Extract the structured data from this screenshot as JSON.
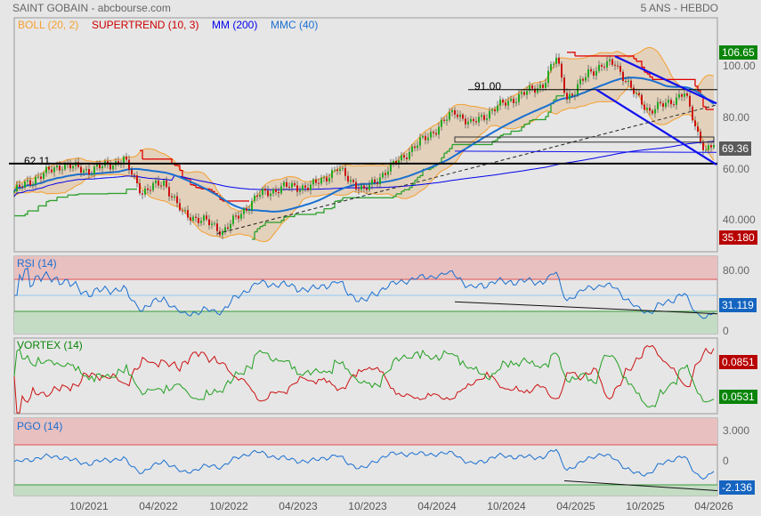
{
  "header": {
    "title": "SAINT GOBAIN - abcbourse.com",
    "period": "5 ANS - HEBDO"
  },
  "legend": [
    {
      "label": "BOLL (20, 2)",
      "color": "#f5a030"
    },
    {
      "label": "SUPERTREND (10, 3)",
      "color": "#cc0000"
    },
    {
      "label": "MM (200)",
      "color": "#0000ee"
    },
    {
      "label": "MMC (40)",
      "color": "#1a6fd0"
    }
  ],
  "price_axis": {
    "ticks": [
      "100.00",
      "80.00",
      "60.00",
      "40.000"
    ],
    "high_badge": "106.65",
    "last_badge": "69.36",
    "low_badge": "35.180"
  },
  "rsi": {
    "title": "RSI (14)",
    "ticks": [
      "80.00",
      "0"
    ],
    "badge": "31.119"
  },
  "vortex": {
    "title": "VORTEX (14)",
    "badge_minus": "0.0851",
    "badge_plus": "0.0531"
  },
  "pgo": {
    "title": "PGO (14)",
    "ticks": [
      "3.000",
      "0"
    ],
    "badge": "-2.136"
  },
  "dates": [
    "10/2021",
    "04/2022",
    "10/2022",
    "04/2023",
    "10/2023",
    "04/2024",
    "10/2024",
    "04/2025",
    "10/2025",
    "04/2026"
  ],
  "annotations": {
    "support_label": "62.11",
    "resistance_label": "91.00"
  },
  "chart_data": {
    "type": "candlestick",
    "title": "SAINT GOBAIN - 5 ANS - HEBDO",
    "x_unit": "week index",
    "ylim": [
      27,
      119
    ],
    "keypoints": [
      [
        0,
        51.3
      ],
      [
        8,
        56.5
      ],
      [
        18,
        61.7
      ],
      [
        28,
        59.3
      ],
      [
        41,
        63.5
      ],
      [
        48,
        51
      ],
      [
        56,
        55
      ],
      [
        63,
        42.6
      ],
      [
        71,
        39.9
      ],
      [
        78,
        35.7
      ],
      [
        85,
        42.6
      ],
      [
        91,
        49.6
      ],
      [
        101,
        53
      ],
      [
        111,
        53
      ],
      [
        121,
        60
      ],
      [
        131,
        51.3
      ],
      [
        138,
        58
      ],
      [
        148,
        67
      ],
      [
        158,
        75.6
      ],
      [
        165,
        82.6
      ],
      [
        171,
        77.4
      ],
      [
        181,
        84.3
      ],
      [
        191,
        89.5
      ],
      [
        198,
        93
      ],
      [
        203,
        103.4
      ],
      [
        207,
        88
      ],
      [
        210,
        90
      ],
      [
        215,
        98
      ],
      [
        225,
        101.7
      ],
      [
        231,
        91
      ],
      [
        238,
        82.6
      ],
      [
        245,
        86
      ],
      [
        251,
        89.5
      ],
      [
        256,
        74
      ],
      [
        259,
        67
      ],
      [
        262,
        69.36
      ]
    ],
    "hlines": [
      {
        "price": 62.11,
        "label": "62.11"
      },
      {
        "price": 91.0,
        "label": "91.00",
        "from": 170
      }
    ],
    "zone": [
      70.5,
      72.5,
      165,
      262
    ],
    "trendlines": [
      {
        "from": [
          225,
          104
        ],
        "to": [
          263,
          85.6
        ],
        "color": "#1010ee"
      },
      {
        "from": [
          218,
          91
        ],
        "to": [
          263,
          61.7
        ],
        "color": "#1010ee"
      },
      {
        "from": [
          76,
          34.8
        ],
        "to": [
          263,
          85
        ],
        "color": "#222",
        "dashed": true
      },
      {
        "from": [
          165,
          67
        ],
        "to": [
          263,
          66.5
        ],
        "color": "#1010ee",
        "thin": true
      }
    ],
    "rsi_bands": [
      70,
      30
    ],
    "pgo_bands": [
      3,
      -3.8
    ]
  }
}
